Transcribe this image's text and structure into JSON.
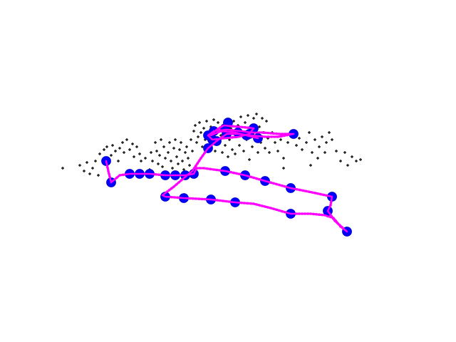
{
  "colors": {
    "background": "#ffffff",
    "landmark": "#000000",
    "trajectory_line": "#ff00ff",
    "keyframe": "#0000ff"
  },
  "chart_data": {
    "type": "scatter",
    "title": "",
    "grid": false,
    "legend": "none",
    "series": [
      {
        "role": "landmarks",
        "marker": "plus",
        "color": "#000000",
        "points": [
          [
            88,
            236
          ],
          [
            112,
            232
          ],
          [
            118,
            240
          ],
          [
            122,
            228
          ],
          [
            126,
            244
          ],
          [
            130,
            236
          ],
          [
            134,
            226
          ],
          [
            138,
            246
          ],
          [
            140,
            216
          ],
          [
            146,
            210
          ],
          [
            150,
            206
          ],
          [
            152,
            230
          ],
          [
            156,
            218
          ],
          [
            158,
            204
          ],
          [
            162,
            212
          ],
          [
            166,
            226
          ],
          [
            168,
            208
          ],
          [
            172,
            200
          ],
          [
            174,
            214
          ],
          [
            178,
            196
          ],
          [
            182,
            210
          ],
          [
            186,
            202
          ],
          [
            188,
            220
          ],
          [
            192,
            206
          ],
          [
            196,
            216
          ],
          [
            198,
            226
          ],
          [
            204,
            222
          ],
          [
            210,
            238
          ],
          [
            212,
            214
          ],
          [
            214,
            226
          ],
          [
            218,
            200
          ],
          [
            220,
            212
          ],
          [
            222,
            230
          ],
          [
            224,
            218
          ],
          [
            226,
            196
          ],
          [
            228,
            234
          ],
          [
            230,
            206
          ],
          [
            232,
            222
          ],
          [
            236,
            214
          ],
          [
            238,
            200
          ],
          [
            240,
            226
          ],
          [
            242,
            236
          ],
          [
            244,
            208
          ],
          [
            246,
            196
          ],
          [
            248,
            220
          ],
          [
            250,
            230
          ],
          [
            252,
            210
          ],
          [
            254,
            200
          ],
          [
            256,
            226
          ],
          [
            258,
            238
          ],
          [
            260,
            214
          ],
          [
            262,
            206
          ],
          [
            264,
            222
          ],
          [
            266,
            232
          ],
          [
            268,
            196
          ],
          [
            270,
            212
          ],
          [
            272,
            184
          ],
          [
            274,
            176
          ],
          [
            276,
            200
          ],
          [
            278,
            192
          ],
          [
            280,
            172
          ],
          [
            282,
            186
          ],
          [
            284,
            206
          ],
          [
            286,
            180
          ],
          [
            288,
            196
          ],
          [
            290,
            170
          ],
          [
            292,
            188
          ],
          [
            294,
            206
          ],
          [
            296,
            178
          ],
          [
            298,
            194
          ],
          [
            300,
            168
          ],
          [
            302,
            212
          ],
          [
            304,
            182
          ],
          [
            306,
            172
          ],
          [
            308,
            200
          ],
          [
            310,
            190
          ],
          [
            312,
            214
          ],
          [
            314,
            176
          ],
          [
            316,
            204
          ],
          [
            318,
            188
          ],
          [
            320,
            220
          ],
          [
            322,
            196
          ],
          [
            324,
            180
          ],
          [
            326,
            210
          ],
          [
            328,
            170
          ],
          [
            330,
            216
          ],
          [
            332,
            192
          ],
          [
            334,
            176
          ],
          [
            336,
            204
          ],
          [
            338,
            164
          ],
          [
            340,
            186
          ],
          [
            342,
            212
          ],
          [
            344,
            172
          ],
          [
            346,
            196
          ],
          [
            348,
            162
          ],
          [
            350,
            224
          ],
          [
            352,
            180
          ],
          [
            354,
            206
          ],
          [
            356,
            166
          ],
          [
            358,
            192
          ],
          [
            360,
            160
          ],
          [
            362,
            214
          ],
          [
            364,
            178
          ],
          [
            366,
            200
          ],
          [
            368,
            166
          ],
          [
            370,
            186
          ],
          [
            372,
            208
          ],
          [
            374,
            170
          ],
          [
            376,
            194
          ],
          [
            378,
            214
          ],
          [
            382,
            186
          ],
          [
            386,
            200
          ],
          [
            390,
            212
          ],
          [
            394,
            196
          ],
          [
            398,
            222
          ],
          [
            404,
            200
          ],
          [
            410,
            188
          ],
          [
            416,
            204
          ],
          [
            420,
            194
          ],
          [
            424,
            210
          ],
          [
            430,
            200
          ],
          [
            434,
            186
          ],
          [
            438,
            214
          ],
          [
            442,
            196
          ],
          [
            446,
            222
          ],
          [
            448,
            206
          ],
          [
            452,
            192
          ],
          [
            456,
            214
          ],
          [
            458,
            200
          ],
          [
            462,
            186
          ],
          [
            466,
            196
          ],
          [
            472,
            212
          ],
          [
            478,
            226
          ],
          [
            484,
            214
          ],
          [
            488,
            232
          ],
          [
            494,
            220
          ],
          [
            500,
            226
          ],
          [
            506,
            224
          ],
          [
            398,
            236
          ],
          [
            436,
            232
          ]
        ]
      },
      {
        "role": "trajectory",
        "line_color": "#ff00ff",
        "keyframe_color": "#0000ff",
        "path": [
          [
            149,
            226
          ],
          [
            152,
            240
          ],
          [
            156,
            256
          ],
          [
            168,
            246
          ],
          [
            182,
            244
          ],
          [
            196,
            244
          ],
          [
            210,
            244
          ],
          [
            232,
            246
          ],
          [
            246,
            246
          ],
          [
            260,
            246
          ],
          [
            272,
            244
          ],
          [
            276,
            236
          ],
          [
            286,
            236
          ],
          [
            300,
            238
          ],
          [
            316,
            240
          ],
          [
            344,
            246
          ],
          [
            372,
            254
          ],
          [
            408,
            264
          ],
          [
            438,
            270
          ],
          [
            466,
            276
          ],
          [
            464,
            288
          ],
          [
            460,
            296
          ],
          [
            470,
            310
          ],
          [
            487,
            325
          ],
          [
            478,
            318
          ],
          [
            468,
            306
          ],
          [
            456,
            302
          ],
          [
            436,
            300
          ],
          [
            408,
            300
          ],
          [
            380,
            292
          ],
          [
            356,
            286
          ],
          [
            330,
            284
          ],
          [
            296,
            280
          ],
          [
            258,
            278
          ],
          [
            232,
            276
          ],
          [
            228,
            274
          ],
          [
            244,
            262
          ],
          [
            258,
            250
          ],
          [
            270,
            240
          ],
          [
            282,
            222
          ],
          [
            292,
            208
          ],
          [
            304,
            198
          ],
          [
            318,
            188
          ],
          [
            336,
            188
          ],
          [
            352,
            190
          ],
          [
            372,
            192
          ],
          [
            390,
            192
          ],
          [
            412,
            188
          ],
          [
            392,
            188
          ],
          [
            368,
            186
          ],
          [
            352,
            186
          ],
          [
            338,
            184
          ],
          [
            318,
            182
          ],
          [
            300,
            184
          ],
          [
            292,
            190
          ],
          [
            298,
            196
          ],
          [
            314,
            194
          ],
          [
            334,
            192
          ],
          [
            350,
            188
          ],
          [
            356,
            180
          ],
          [
            336,
            178
          ],
          [
            314,
            176
          ],
          [
            304,
            182
          ],
          [
            296,
            190
          ],
          [
            310,
            184
          ],
          [
            330,
            186
          ],
          [
            346,
            190
          ],
          [
            362,
            194
          ]
        ],
        "keyframes": [
          [
            149,
            226
          ],
          [
            156,
            256
          ],
          [
            182,
            244
          ],
          [
            196,
            244
          ],
          [
            210,
            244
          ],
          [
            232,
            246
          ],
          [
            246,
            246
          ],
          [
            260,
            246
          ],
          [
            272,
            244
          ],
          [
            316,
            240
          ],
          [
            344,
            246
          ],
          [
            372,
            254
          ],
          [
            408,
            264
          ],
          [
            466,
            276
          ],
          [
            460,
            296
          ],
          [
            487,
            325
          ],
          [
            408,
            300
          ],
          [
            330,
            284
          ],
          [
            296,
            280
          ],
          [
            258,
            278
          ],
          [
            232,
            276
          ],
          [
            292,
            208
          ],
          [
            318,
            188
          ],
          [
            304,
            198
          ],
          [
            298,
            196
          ],
          [
            292,
            190
          ],
          [
            300,
            184
          ],
          [
            316,
            180
          ],
          [
            320,
            172
          ],
          [
            334,
            186
          ],
          [
            346,
            190
          ],
          [
            350,
            188
          ],
          [
            356,
            180
          ],
          [
            362,
            194
          ],
          [
            412,
            188
          ]
        ]
      }
    ]
  }
}
